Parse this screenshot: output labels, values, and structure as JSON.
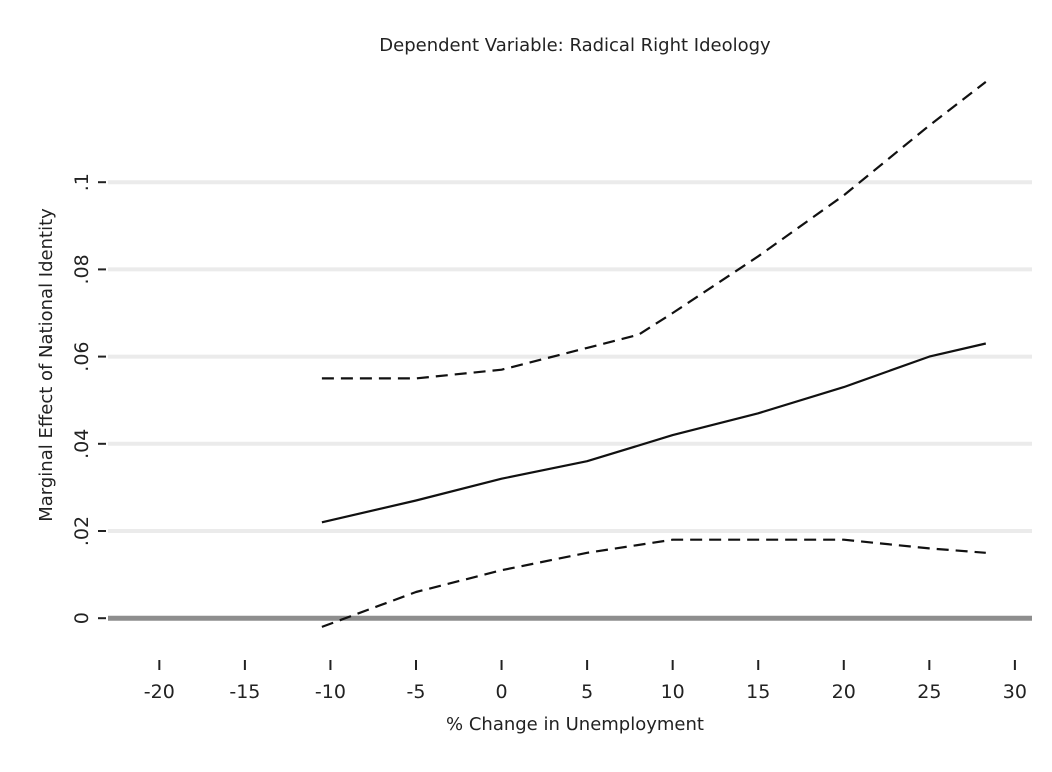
{
  "chart_data": {
    "type": "line",
    "title": "Dependent Variable: Radical Right Ideology",
    "xlabel": "% Change in Unemployment",
    "ylabel": "Marginal Effect of National Identity",
    "xlim": [
      -23,
      31
    ],
    "ylim": [
      -0.005,
      0.12
    ],
    "x_ticks": [
      -20,
      -15,
      -10,
      -5,
      0,
      5,
      10,
      15,
      20,
      25,
      30
    ],
    "x_tick_labels": [
      "-20",
      "-15",
      "-10",
      "-5",
      "0",
      "5",
      "10",
      "15",
      "20",
      "25",
      "30"
    ],
    "y_ticks": [
      0,
      0.02,
      0.04,
      0.06,
      0.08,
      0.1
    ],
    "y_tick_labels": [
      "0",
      ".02",
      ".04",
      ".06",
      ".08",
      ".1"
    ],
    "grid": "horizontal",
    "series": [
      {
        "style": "solid",
        "x": [
          -10.5,
          -5,
          0,
          5,
          10,
          15,
          20,
          25,
          28.3
        ],
        "y": [
          0.022,
          0.027,
          0.032,
          0.036,
          0.042,
          0.047,
          0.053,
          0.06,
          0.063
        ]
      },
      {
        "style": "dashed",
        "x": [
          -10.5,
          -5,
          0,
          5,
          8,
          10,
          15,
          20,
          25,
          28.3
        ],
        "y": [
          0.055,
          0.055,
          0.057,
          0.062,
          0.065,
          0.07,
          0.083,
          0.097,
          0.113,
          0.123
        ]
      },
      {
        "style": "dashed",
        "x": [
          -10.5,
          -5,
          0,
          5,
          10,
          15,
          20,
          25,
          28.3
        ],
        "y": [
          -0.002,
          0.006,
          0.011,
          0.015,
          0.018,
          0.018,
          0.018,
          0.016,
          0.015
        ]
      }
    ]
  }
}
